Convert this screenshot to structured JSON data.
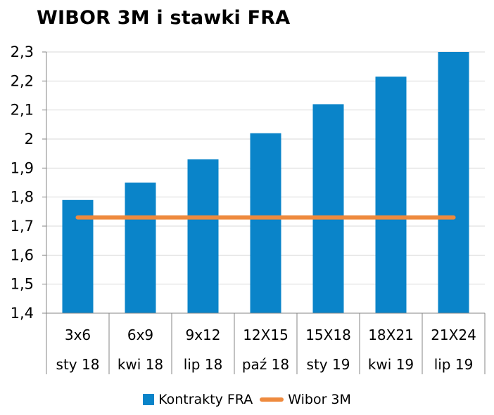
{
  "chart_data": {
    "type": "bar",
    "title": "WIBOR 3M i stawki FRA",
    "xlabel": "",
    "ylabel": "",
    "ylim": [
      1.4,
      2.3
    ],
    "yticks": [
      "1,4",
      "1,5",
      "1,6",
      "1,7",
      "1,8",
      "1,9",
      "2",
      "2,1",
      "2,2",
      "2,3"
    ],
    "ytick_values": [
      1.4,
      1.5,
      1.6,
      1.7,
      1.8,
      1.9,
      2.0,
      2.1,
      2.2,
      2.3
    ],
    "categories": [
      [
        "3x6",
        "sty 18"
      ],
      [
        "6x9",
        "kwi 18"
      ],
      [
        "9x12",
        "lip 18"
      ],
      [
        "12X15",
        "paź 18"
      ],
      [
        "15X18",
        "sty 19"
      ],
      [
        "18X21",
        "kwi 19"
      ],
      [
        "21X24",
        "lip 19"
      ]
    ],
    "series": [
      {
        "name": "Kontrakty FRA",
        "type": "bar",
        "color": "#0a84c9",
        "values": [
          1.79,
          1.85,
          1.93,
          2.02,
          2.12,
          2.215,
          2.3
        ]
      },
      {
        "name": "Wibor 3M",
        "type": "line",
        "color": "#ee8a3e",
        "values": [
          1.73,
          1.73,
          1.73,
          1.73,
          1.73,
          1.73,
          1.73
        ]
      }
    ],
    "grid": true,
    "legend_position": "bottom"
  }
}
